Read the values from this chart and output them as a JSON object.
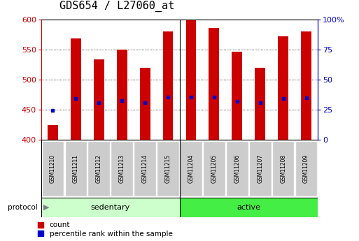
{
  "title": "GDS654 / L27060_at",
  "samples": [
    "GSM11210",
    "GSM11211",
    "GSM11212",
    "GSM11213",
    "GSM11214",
    "GSM11215",
    "GSM11204",
    "GSM11205",
    "GSM11206",
    "GSM11207",
    "GSM11208",
    "GSM11209"
  ],
  "bar_heights": [
    425,
    568,
    533,
    550,
    520,
    580,
    598,
    586,
    546,
    520,
    572,
    580
  ],
  "blue_marker_y": [
    449,
    468,
    462,
    465,
    462,
    471,
    471,
    471,
    464,
    462,
    469,
    470
  ],
  "groups": [
    {
      "label": "sedentary",
      "start": 0,
      "end": 6,
      "color": "#ccffcc"
    },
    {
      "label": "active",
      "start": 6,
      "end": 12,
      "color": "#44ee44"
    }
  ],
  "ymin": 400,
  "ymax": 600,
  "yticks": [
    400,
    450,
    500,
    550,
    600
  ],
  "y2ticks": [
    0,
    25,
    50,
    75,
    100
  ],
  "bar_color": "#cc0000",
  "blue_color": "#0000cc",
  "background_color": "#ffffff",
  "axis_left_color": "#cc0000",
  "axis_right_color": "#0000cc",
  "grid_color": "#000000",
  "protocol_label": "protocol",
  "legend_count_label": "count",
  "legend_percentile_label": "percentile rank within the sample",
  "sample_box_color": "#cccccc",
  "title_fontsize": 11,
  "tick_fontsize": 8,
  "bar_width": 0.45
}
